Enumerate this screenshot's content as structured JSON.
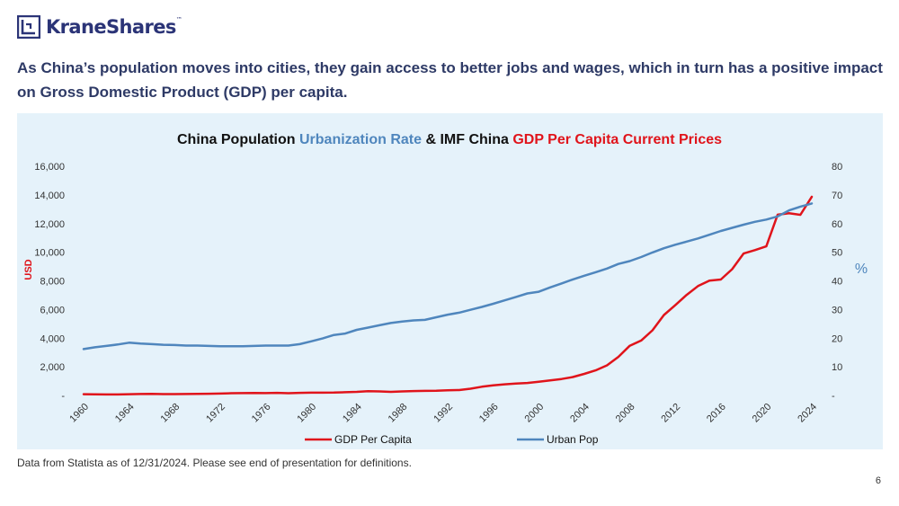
{
  "brand": {
    "name": "KraneShares",
    "trademark": "™"
  },
  "headline": "As China’s population moves into cities, they gain access to better jobs and wages, which in turn has a positive impact on Gross Domestic Product (GDP) per capita.",
  "footnote": "Data from Statista as of 12/31/2024. Please see end of presentation for definitions.",
  "page_number": "6",
  "colors": {
    "gdp": "#e0141b",
    "urban": "#4f86bd",
    "title": "#111111",
    "panel": "#e5f2fa",
    "brand": "#2b3477"
  },
  "chart_data": {
    "type": "line",
    "title_parts": [
      {
        "text": "China Population ",
        "role": "plain"
      },
      {
        "text": "Urbanization Rate",
        "role": "urban"
      },
      {
        "text": " & IMF China ",
        "role": "plain"
      },
      {
        "text": "GDP Per Capita Current Prices",
        "role": "gdp"
      }
    ],
    "ylabel_left": "USD",
    "ylabel_right": "%",
    "ylim_left": [
      0,
      16000
    ],
    "ylim_right": [
      0,
      80
    ],
    "yticks_left": [
      "-",
      "2,000",
      "4,000",
      "6,000",
      "8,000",
      "10,000",
      "12,000",
      "14,000",
      "16,000"
    ],
    "yticks_right": [
      "-",
      "10",
      "20",
      "30",
      "40",
      "50",
      "60",
      "70",
      "80"
    ],
    "xticks": [
      "1960",
      "1964",
      "1968",
      "1972",
      "1976",
      "1980",
      "1984",
      "1988",
      "1992",
      "1996",
      "2000",
      "2004",
      "2008",
      "2012",
      "2016",
      "2020",
      "2024"
    ],
    "x": [
      1960,
      1961,
      1962,
      1963,
      1964,
      1965,
      1966,
      1967,
      1968,
      1969,
      1970,
      1971,
      1972,
      1973,
      1974,
      1975,
      1976,
      1977,
      1978,
      1979,
      1980,
      1981,
      1982,
      1983,
      1984,
      1985,
      1986,
      1987,
      1988,
      1989,
      1990,
      1991,
      1992,
      1993,
      1994,
      1995,
      1996,
      1997,
      1998,
      1999,
      2000,
      2001,
      2002,
      2003,
      2004,
      2005,
      2006,
      2007,
      2008,
      2009,
      2010,
      2011,
      2012,
      2013,
      2014,
      2015,
      2016,
      2017,
      2018,
      2019,
      2020,
      2021,
      2022,
      2023,
      2024
    ],
    "series": [
      {
        "name": "GDP Per Capita",
        "axis": "left",
        "color": "#e0141b",
        "values": [
          90,
          76,
          70,
          72,
          85,
          98,
          104,
          96,
          91,
          100,
          113,
          118,
          132,
          157,
          160,
          178,
          165,
          185,
          156,
          183,
          195,
          197,
          203,
          225,
          250,
          294,
          282,
          252,
          284,
          310,
          318,
          333,
          366,
          377,
          473,
          609,
          709,
          781,
          828,
          873,
          959,
          1053,
          1148,
          1288,
          1508,
          1753,
          2099,
          2694,
          3468,
          3832,
          4550,
          5618,
          6301,
          7020,
          7636,
          8016,
          8094,
          8817,
          9905,
          10144,
          10409,
          12618,
          12720,
          12614,
          13870
        ]
      },
      {
        "name": "Urban Pop",
        "axis": "right",
        "color": "#4f86bd",
        "values": [
          16.2,
          16.8,
          17.3,
          17.8,
          18.4,
          18.1,
          17.9,
          17.7,
          17.6,
          17.4,
          17.4,
          17.3,
          17.2,
          17.2,
          17.2,
          17.3,
          17.4,
          17.4,
          17.4,
          17.9,
          18.9,
          19.9,
          21.1,
          21.6,
          22.9,
          23.7,
          24.5,
          25.3,
          25.8,
          26.2,
          26.4,
          27.3,
          28.2,
          28.9,
          29.9,
          30.9,
          32.0,
          33.2,
          34.4,
          35.6,
          36.2,
          37.7,
          39.1,
          40.5,
          41.8,
          43.0,
          44.3,
          45.9,
          46.9,
          48.3,
          49.9,
          51.4,
          52.6,
          53.7,
          54.8,
          56.1,
          57.4,
          58.5,
          59.6,
          60.6,
          61.4,
          62.5,
          64.6,
          65.9,
          67.0
        ]
      }
    ],
    "legend_position": "bottom",
    "gridlines": true
  }
}
